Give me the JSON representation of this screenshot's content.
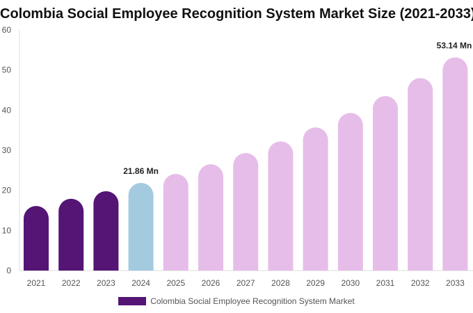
{
  "chart_data": {
    "type": "bar",
    "title": "Colombia Social Employee Recognition System Market Size (2021-2033)",
    "categories": [
      "2021",
      "2022",
      "2023",
      "2024",
      "2025",
      "2026",
      "2027",
      "2028",
      "2029",
      "2030",
      "2031",
      "2032",
      "2033"
    ],
    "series": [
      {
        "name": "Colombia Social Employee Recognition System Market",
        "values": [
          16.1,
          17.9,
          19.8,
          21.86,
          24.1,
          26.5,
          29.3,
          32.2,
          35.7,
          39.3,
          43.5,
          48.0,
          53.14
        ]
      }
    ],
    "data_labels": {
      "3": "21.86 Mn",
      "12": "53.14 Mn"
    },
    "ylim": [
      0,
      60
    ],
    "yticks": [
      0,
      10,
      20,
      30,
      40,
      50,
      60
    ],
    "grid": false,
    "legend_position": "bottom",
    "colors": {
      "historical": "#541574",
      "current": "#a3cadf",
      "forecast": "#e6bde9"
    }
  }
}
